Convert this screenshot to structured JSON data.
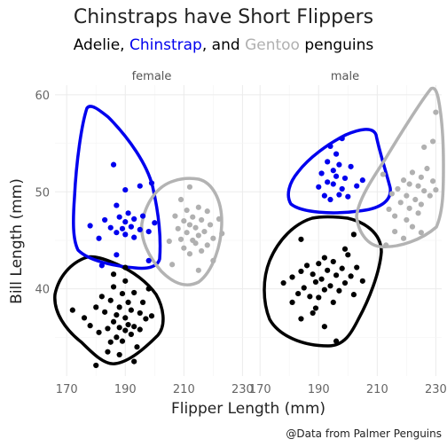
{
  "chart_data": {
    "type": "scatter",
    "title": "Chinstraps have Short Flippers",
    "subtitle_parts": [
      {
        "text": "Adelie, ",
        "color": "#000000"
      },
      {
        "text": "Chinstrap",
        "color": "#0000ee"
      },
      {
        "text": ", and ",
        "color": "#000000"
      },
      {
        "text": "Gentoo",
        "color": "#b0b0b0"
      },
      {
        "text": " penguins",
        "color": "#000000"
      }
    ],
    "xlabel": "Flipper Length (mm)",
    "ylabel": "Bill Length (mm)",
    "caption": "@Data from Palmer Penguins",
    "xlim": [
      166,
      232
    ],
    "ylim": [
      31,
      61
    ],
    "x_ticks": [
      170,
      190,
      210,
      230
    ],
    "y_ticks": [
      40,
      50,
      60
    ],
    "x_tick_labels": [
      "170",
      "190",
      "210",
      "230"
    ],
    "y_tick_labels": [
      "40",
      "50",
      "60"
    ],
    "grid": true,
    "facets": [
      {
        "label": "female",
        "series": [
          {
            "name": "Adelie",
            "color": "#000000",
            "points": [
              [
                172,
                37.8
              ],
              [
                176,
                37
              ],
              [
                178,
                36.2
              ],
              [
                180,
                38.1
              ],
              [
                181,
                35.5
              ],
              [
                182,
                39.2
              ],
              [
                183,
                37.6
              ],
              [
                184,
                35.9
              ],
              [
                185,
                38.8
              ],
              [
                185,
                34.5
              ],
              [
                186,
                36.6
              ],
              [
                186,
                40.2
              ],
              [
                187,
                37.3
              ],
              [
                187,
                35.0
              ],
              [
                188,
                38.1
              ],
              [
                188,
                36.0
              ],
              [
                189,
                39.5
              ],
              [
                189,
                34.6
              ],
              [
                190,
                37.0
              ],
              [
                190,
                35.7
              ],
              [
                190,
                40.8
              ],
              [
                191,
                36.3
              ],
              [
                191,
                38.6
              ],
              [
                192,
                35.3
              ],
              [
                192,
                37.8
              ],
              [
                193,
                39.6
              ],
              [
                193,
                36.1
              ],
              [
                194,
                34.0
              ],
              [
                195,
                37.5
              ],
              [
                195,
                35.8
              ],
              [
                196,
                38.6
              ],
              [
                197,
                36.9
              ],
              [
                198,
                40.0
              ],
              [
                199,
                37.2
              ],
              [
                180,
                32.1
              ],
              [
                184,
                33.5
              ],
              [
                188,
                33.2
              ],
              [
                193,
                32.5
              ],
              [
                186,
                41.5
              ],
              [
                190,
                42.2
              ]
            ]
          },
          {
            "name": "Chinstrap",
            "color": "#0000ee",
            "points": [
              [
                178,
                46.5
              ],
              [
                181,
                45.2
              ],
              [
                183,
                47.1
              ],
              [
                185,
                46.3
              ],
              [
                187,
                45.8
              ],
              [
                188,
                47.4
              ],
              [
                189,
                46.2
              ],
              [
                190,
                46.9
              ],
              [
                190,
                45.6
              ],
              [
                191,
                47.8
              ],
              [
                192,
                46.4
              ],
              [
                193,
                45.3
              ],
              [
                193,
                47.2
              ],
              [
                195,
                46.1
              ],
              [
                196,
                47.5
              ],
              [
                198,
                45.9
              ],
              [
                200,
                46.8
              ],
              [
                187,
                48.6
              ],
              [
                190,
                50.2
              ],
              [
                195,
                50.6
              ],
              [
                199,
                50.9
              ],
              [
                182,
                42.4
              ],
              [
                187,
                43.5
              ],
              [
                198,
                42.9
              ],
              [
                186,
                52.8
              ]
            ]
          },
          {
            "name": "Gentoo",
            "color": "#b0b0b0",
            "points": [
              [
                208,
                46.2
              ],
              [
                209,
                45.1
              ],
              [
                210,
                47.0
              ],
              [
                210,
                44.2
              ],
              [
                211,
                45.8
              ],
              [
                211,
                48.1
              ],
              [
                212,
                46.6
              ],
              [
                212,
                43.6
              ],
              [
                213,
                45.0
              ],
              [
                213,
                47.4
              ],
              [
                214,
                44.7
              ],
              [
                214,
                46.3
              ],
              [
                215,
                45.5
              ],
              [
                215,
                48.4
              ],
              [
                216,
                43.9
              ],
              [
                216,
                47.1
              ],
              [
                217,
                45.9
              ],
              [
                218,
                44.5
              ],
              [
                218,
                48.0
              ],
              [
                219,
                46.6
              ],
              [
                220,
                45.2
              ],
              [
                222,
                47.2
              ],
              [
                205,
                44.9
              ],
              [
                206,
                42.5
              ],
              [
                207,
                47.5
              ],
              [
                209,
                49.2
              ],
              [
                212,
                50.5
              ],
              [
                215,
                41.9
              ],
              [
                220,
                42.9
              ],
              [
                223,
                45.7
              ]
            ]
          }
        ]
      },
      {
        "label": "male",
        "series": [
          {
            "name": "Adelie",
            "color": "#000000",
            "points": [
              [
                178,
                40.6
              ],
              [
                181,
                41.2
              ],
              [
                183,
                39.5
              ],
              [
                184,
                41.8
              ],
              [
                185,
                40.1
              ],
              [
                186,
                42.4
              ],
              [
                187,
                39.2
              ],
              [
                188,
                41.5
              ],
              [
                189,
                40.7
              ],
              [
                190,
                42.6
              ],
              [
                190,
                39.1
              ],
              [
                191,
                41.0
              ],
              [
                192,
                43.2
              ],
              [
                192,
                39.9
              ],
              [
                193,
                41.9
              ],
              [
                194,
                40.3
              ],
              [
                195,
                42.8
              ],
              [
                195,
                38.6
              ],
              [
                196,
                41.4
              ],
              [
                197,
                39.8
              ],
              [
                198,
                42.1
              ],
              [
                199,
                40.6
              ],
              [
                200,
                43.5
              ],
              [
                201,
                41.3
              ],
              [
                202,
                39.4
              ],
              [
                203,
                42.2
              ],
              [
                205,
                40.8
              ],
              [
                184,
                36.9
              ],
              [
                188,
                37.5
              ],
              [
                192,
                36.1
              ],
              [
                196,
                34.6
              ],
              [
                181,
                38.6
              ],
              [
                199,
                44.1
              ],
              [
                202,
                45.6
              ],
              [
                184,
                45.1
              ],
              [
                189,
                38.0
              ]
            ]
          },
          {
            "name": "Chinstrap",
            "color": "#0000ee",
            "points": [
              [
                190,
                50.5
              ],
              [
                191,
                51.9
              ],
              [
                192,
                49.6
              ],
              [
                193,
                51.0
              ],
              [
                194,
                49.2
              ],
              [
                195,
                50.8
              ],
              [
                195,
                52.2
              ],
              [
                196,
                51.6
              ],
              [
                197,
                49.7
              ],
              [
                197,
                52.8
              ],
              [
                198,
                50.3
              ],
              [
                199,
                51.4
              ],
              [
                200,
                49.5
              ],
              [
                201,
                52.6
              ],
              [
                203,
                50.6
              ],
              [
                205,
                51.2
              ],
              [
                193,
                53.1
              ],
              [
                194,
                54.7
              ],
              [
                196,
                53.9
              ],
              [
                198,
                55.5
              ]
            ]
          },
          {
            "name": "Gentoo",
            "color": "#b0b0b0",
            "points": [
              [
                214,
                48.2
              ],
              [
                215,
                49.8
              ],
              [
                216,
                47.5
              ],
              [
                217,
                50.3
              ],
              [
                218,
                48.9
              ],
              [
                219,
                51.2
              ],
              [
                220,
                49.6
              ],
              [
                220,
                47.1
              ],
              [
                221,
                50.8
              ],
              [
                221,
                48.3
              ],
              [
                222,
                52.0
              ],
              [
                223,
                49.2
              ],
              [
                224,
                50.6
              ],
              [
                224,
                47.8
              ],
              [
                225,
                51.5
              ],
              [
                225,
                48.7
              ],
              [
                226,
                50.1
              ],
              [
                227,
                52.4
              ],
              [
                228,
                49.6
              ],
              [
                229,
                51.1
              ],
              [
                230,
                50.2
              ],
              [
                216,
                45.9
              ],
              [
                219,
                45.2
              ],
              [
                222,
                46.4
              ],
              [
                225,
                45.8
              ],
              [
                213,
                44.5
              ],
              [
                212,
                51.8
              ],
              [
                226,
                54.6
              ],
              [
                229,
                55.2
              ],
              [
                230,
                58.2
              ]
            ]
          }
        ]
      }
    ]
  }
}
